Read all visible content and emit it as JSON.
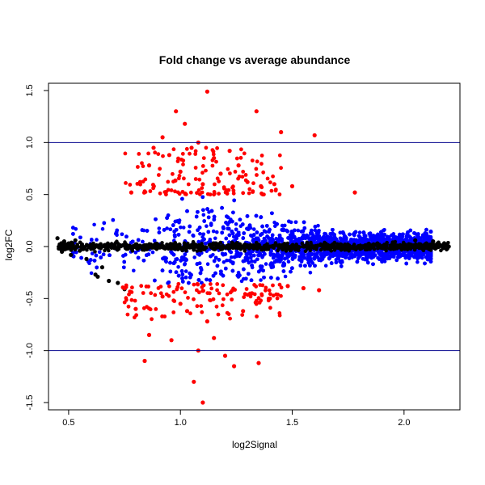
{
  "chart_data": {
    "type": "scatter",
    "title": "Fold change vs average abundance",
    "xlabel": "log2Signal",
    "ylabel": "log2FC",
    "xlim": [
      0.41,
      2.25
    ],
    "ylim": [
      -1.57,
      1.57
    ],
    "x_ticks": [
      0.5,
      1.0,
      1.5,
      2.0
    ],
    "y_ticks": [
      -1.5,
      -1.0,
      -0.5,
      0.0,
      0.5,
      1.0,
      1.5
    ],
    "x_tick_labels": [
      "0.5",
      "1.0",
      "1.5",
      "2.0"
    ],
    "y_tick_labels": [
      "-1.5",
      "-1.0",
      "-0.5",
      "0.0",
      "0.5",
      "1.0",
      "1.5"
    ],
    "hlines": [
      1.0,
      -1.0
    ],
    "hline_color": "#00008b",
    "grid": false,
    "series_colors": {
      "low_abundance": "#000000",
      "moderate": "#0000ff",
      "high_fold_change": "#ff0000"
    },
    "series": [
      {
        "color": "#000000",
        "points": [
          [
            0.45,
            0.08
          ],
          [
            0.46,
            0.02
          ],
          [
            0.47,
            -0.05
          ],
          [
            0.48,
            0.05
          ],
          [
            0.49,
            -0.02
          ],
          [
            0.5,
            0.03
          ],
          [
            0.51,
            -0.08
          ],
          [
            0.52,
            0.01
          ],
          [
            0.53,
            0.06
          ],
          [
            0.55,
            -0.04
          ],
          [
            0.56,
            0.02
          ],
          [
            0.58,
            -0.12
          ],
          [
            0.6,
            0.0
          ],
          [
            0.62,
            -0.27
          ],
          [
            0.63,
            -0.29
          ],
          [
            0.65,
            -0.2
          ],
          [
            0.68,
            -0.33
          ],
          [
            0.72,
            -0.35
          ],
          [
            0.75,
            -0.41
          ],
          [
            0.8,
            0.02
          ],
          [
            0.9,
            0.0
          ],
          [
            1.0,
            -0.01
          ],
          [
            1.1,
            0.0
          ],
          [
            1.2,
            -0.01
          ],
          [
            1.3,
            0.01
          ],
          [
            1.4,
            0.0
          ],
          [
            1.5,
            0.01
          ],
          [
            1.6,
            0.0
          ],
          [
            1.7,
            -0.01
          ],
          [
            1.8,
            0.0
          ],
          [
            1.9,
            0.0
          ],
          [
            1.95,
            0.04
          ],
          [
            2.0,
            0.02
          ],
          [
            2.05,
            0.06
          ],
          [
            2.1,
            0.03
          ],
          [
            2.13,
            0.05
          ],
          [
            2.15,
            0.0
          ],
          [
            2.18,
            0.03
          ],
          [
            2.2,
            0.0
          ]
        ]
      },
      {
        "color": "#ff0000",
        "points": [
          [
            0.78,
            0.52
          ],
          [
            0.82,
            0.62
          ],
          [
            0.86,
            0.78
          ],
          [
            0.88,
            0.95
          ],
          [
            0.92,
            1.05
          ],
          [
            0.95,
            0.88
          ],
          [
            0.98,
            1.3
          ],
          [
            1.0,
            0.72
          ],
          [
            1.02,
            1.18
          ],
          [
            1.05,
            0.95
          ],
          [
            1.08,
            1.0
          ],
          [
            1.1,
            0.6
          ],
          [
            1.12,
            1.49
          ],
          [
            1.15,
            0.85
          ],
          [
            1.18,
            0.7
          ],
          [
            1.22,
            0.92
          ],
          [
            1.26,
            0.78
          ],
          [
            1.3,
            0.62
          ],
          [
            1.34,
            1.3
          ],
          [
            1.36,
            0.58
          ],
          [
            1.42,
            0.6
          ],
          [
            1.45,
            1.1
          ],
          [
            1.5,
            0.58
          ],
          [
            1.6,
            1.07
          ],
          [
            1.78,
            0.52
          ],
          [
            0.75,
            -0.4
          ],
          [
            0.8,
            -0.6
          ],
          [
            0.84,
            -1.1
          ],
          [
            0.86,
            -0.85
          ],
          [
            0.92,
            -0.48
          ],
          [
            0.96,
            -0.9
          ],
          [
            1.0,
            -0.55
          ],
          [
            1.03,
            -0.62
          ],
          [
            1.06,
            -1.3
          ],
          [
            1.08,
            -1.0
          ],
          [
            1.1,
            -1.5
          ],
          [
            1.12,
            -0.72
          ],
          [
            1.15,
            -0.88
          ],
          [
            1.2,
            -1.05
          ],
          [
            1.24,
            -1.15
          ],
          [
            1.28,
            -0.62
          ],
          [
            1.32,
            -0.45
          ],
          [
            1.35,
            -1.12
          ],
          [
            1.4,
            -0.5
          ],
          [
            1.48,
            -0.38
          ],
          [
            1.55,
            -0.4
          ],
          [
            1.62,
            -0.42
          ]
        ]
      }
    ]
  }
}
